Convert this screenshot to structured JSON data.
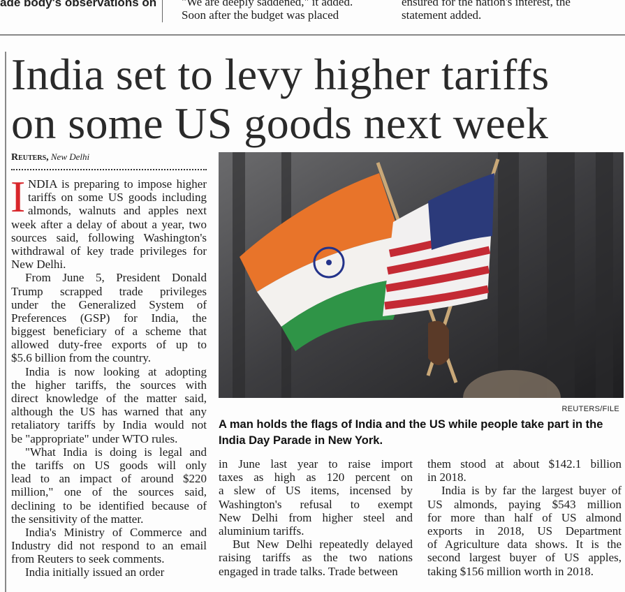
{
  "top_strip": {
    "col1": "ade body's observations on",
    "col2": [
      "\"We are deeply saddened,\" it added.",
      "Soon after the budget was placed"
    ],
    "col3": [
      "ensured for the nation's interest, the",
      "statement added."
    ]
  },
  "article": {
    "headline": [
      "India set to levy higher tariffs",
      "on some US goods next week"
    ],
    "byline_agency": "Reuters,",
    "byline_place": "New Delhi",
    "drop_cap": "I",
    "accent_color": "#d8262b",
    "columns": [
      [
        [
          "NDIA is preparing to impose higher",
          "tariffs on some US goods including",
          "almonds, walnuts and apples next",
          "week after a delay of about a year, two",
          "sources said, following Washington's",
          "withdrawal of key trade privileges for",
          "New Delhi."
        ],
        [
          "From June 5, President Donald",
          "Trump scrapped trade privileges",
          "under the Generalized System of",
          "Preferences (GSP) for India, the",
          "biggest beneficiary of a scheme that",
          "allowed duty-free exports of up to",
          "$5.6 billion from the country."
        ],
        [
          "India is now looking at adopting",
          "the higher tariffs, the sources with",
          "direct knowledge of the matter said,",
          "although the US has warned that any",
          "retaliatory tariffs by India would not",
          "be \"appropriate\" under WTO rules."
        ],
        [
          "\"What India is doing is legal and",
          "the tariffs on US goods will only",
          "lead to an impact of around $220",
          "million,\" one of the sources said,",
          "declining to be identified because of",
          "the sensitivity of the matter."
        ],
        [
          "India's Ministry of Commerce and",
          "Industry did not respond to an email",
          "from Reuters to seek comments."
        ],
        [
          "India initially issued an order"
        ]
      ],
      [
        [
          "in June last year to raise import",
          "taxes as high as 120 percent on",
          "a slew of US items, incensed by",
          "Washington's refusal to exempt",
          "New Delhi from higher steel and",
          "aluminium tariffs."
        ],
        [
          "But New Delhi repeatedly delayed",
          "raising tariffs as the two nations",
          "engaged in trade talks. Trade between"
        ]
      ],
      [
        [
          "them stood at about $142.1 billion",
          "in 2018."
        ],
        [
          "India is by far the largest buyer of",
          "US almonds, paying $543 million",
          "for more than half of US almond",
          "exports in 2018, US Department",
          "of Agriculture data shows. It is the",
          "second largest buyer of US apples,",
          "taking $156 million worth in 2018."
        ]
      ]
    ],
    "photo": {
      "credit": "REUTERS/FILE",
      "caption": "A man holds the flags of India and the US while people take part in the India Day Parade in New York."
    }
  }
}
